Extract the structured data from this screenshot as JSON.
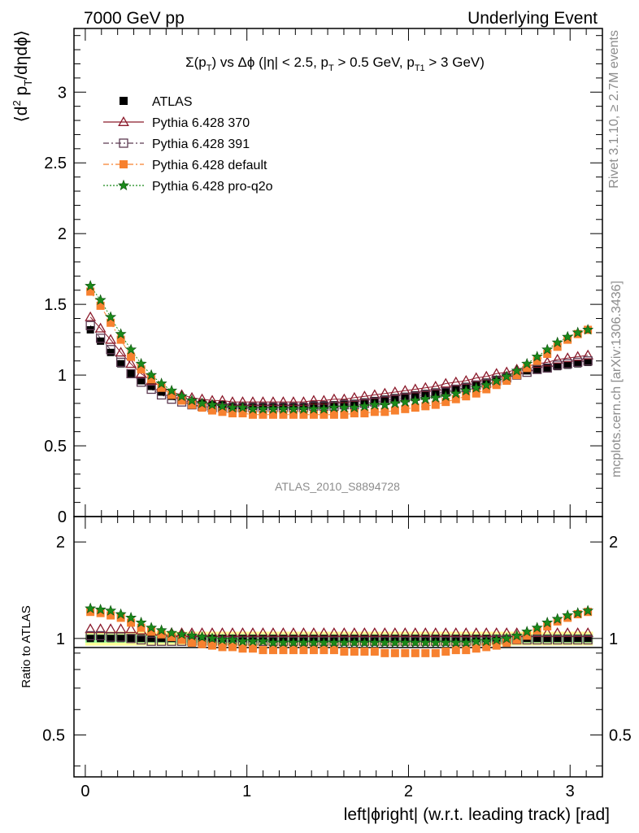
{
  "header": {
    "left": "7000 GeV pp",
    "right": "Underlying Event"
  },
  "side_labels": {
    "top": "Rivet 3.1.10, ≥ 2.7M events",
    "bottom": "mcplots.cern.ch [arXiv:1306.3436]"
  },
  "watermark": "ATLAS_2010_S8894728",
  "chart_data": [
    {
      "type": "scatter",
      "panel": "main",
      "title": "Σ(pT) vs Δφ (|η| < 2.5, pT > 0.5 GeV, pT1 > 3 GeV)",
      "ylabel": "⟨d² pT/dηdφ⟩",
      "xlabel": "",
      "xlim": [
        -0.07,
        3.2
      ],
      "ylim": [
        0,
        3.45
      ],
      "yticks": [
        "0",
        "0.5",
        "1",
        "1.5",
        "2",
        "2.5",
        "3"
      ],
      "xticks": [],
      "grid": false,
      "legend_position": "top-left",
      "x": [
        0.0314,
        0.0942,
        0.157,
        0.2199,
        0.2827,
        0.3456,
        0.4084,
        0.4712,
        0.5341,
        0.5969,
        0.6597,
        0.7226,
        0.7854,
        0.8482,
        0.9111,
        0.9739,
        1.0367,
        1.0996,
        1.1624,
        1.2252,
        1.2881,
        1.3509,
        1.4137,
        1.4765,
        1.5394,
        1.6022,
        1.665,
        1.7279,
        1.7907,
        1.8535,
        1.9164,
        1.9792,
        2.042,
        2.1049,
        2.1677,
        2.2305,
        2.2934,
        2.3562,
        2.419,
        2.4819,
        2.5447,
        2.6075,
        2.6704,
        2.7332,
        2.796,
        2.8589,
        2.9217,
        2.9845,
        3.0474,
        3.1102
      ],
      "series": [
        {
          "name": "ATLAS",
          "color": "#000000",
          "marker": "filled-square",
          "line": "none",
          "values": [
            1.32,
            1.24,
            1.16,
            1.08,
            1.01,
            0.96,
            0.92,
            0.88,
            0.85,
            0.83,
            0.81,
            0.8,
            0.79,
            0.79,
            0.78,
            0.78,
            0.78,
            0.78,
            0.78,
            0.78,
            0.78,
            0.78,
            0.79,
            0.79,
            0.79,
            0.8,
            0.8,
            0.81,
            0.82,
            0.83,
            0.84,
            0.85,
            0.86,
            0.87,
            0.88,
            0.89,
            0.9,
            0.92,
            0.93,
            0.95,
            0.97,
            0.99,
            1.01,
            1.03,
            1.04,
            1.05,
            1.06,
            1.07,
            1.08,
            1.09
          ]
        },
        {
          "name": "Pythia 6.428 370",
          "color": "#8b1a2b",
          "marker": "open-triangle",
          "line": "solid",
          "values": [
            1.41,
            1.33,
            1.25,
            1.16,
            1.08,
            1.01,
            0.96,
            0.92,
            0.88,
            0.86,
            0.84,
            0.83,
            0.82,
            0.82,
            0.81,
            0.81,
            0.81,
            0.81,
            0.81,
            0.81,
            0.81,
            0.81,
            0.82,
            0.82,
            0.83,
            0.83,
            0.84,
            0.85,
            0.86,
            0.87,
            0.88,
            0.89,
            0.9,
            0.91,
            0.92,
            0.94,
            0.95,
            0.96,
            0.98,
            0.99,
            1.01,
            1.02,
            1.04,
            1.06,
            1.08,
            1.09,
            1.11,
            1.12,
            1.13,
            1.14
          ]
        },
        {
          "name": "Pythia 6.428 391",
          "color": "#5c3a52",
          "marker": "open-square",
          "line": "dashdot",
          "values": [
            1.35,
            1.26,
            1.18,
            1.09,
            1.01,
            0.95,
            0.9,
            0.86,
            0.83,
            0.81,
            0.79,
            0.78,
            0.77,
            0.77,
            0.77,
            0.77,
            0.77,
            0.77,
            0.77,
            0.77,
            0.77,
            0.77,
            0.78,
            0.78,
            0.78,
            0.79,
            0.79,
            0.8,
            0.81,
            0.82,
            0.83,
            0.84,
            0.85,
            0.86,
            0.87,
            0.88,
            0.9,
            0.91,
            0.93,
            0.94,
            0.96,
            0.98,
            1.0,
            1.02,
            1.04,
            1.05,
            1.07,
            1.08,
            1.09,
            1.1
          ]
        },
        {
          "name": "Pythia 6.428 default",
          "color": "#f7812f",
          "marker": "filled-square",
          "line": "dashdot",
          "values": [
            1.59,
            1.49,
            1.37,
            1.25,
            1.13,
            1.04,
            0.97,
            0.91,
            0.86,
            0.82,
            0.79,
            0.77,
            0.75,
            0.74,
            0.73,
            0.73,
            0.72,
            0.72,
            0.72,
            0.72,
            0.72,
            0.72,
            0.72,
            0.72,
            0.72,
            0.72,
            0.73,
            0.73,
            0.74,
            0.74,
            0.75,
            0.76,
            0.77,
            0.78,
            0.79,
            0.81,
            0.83,
            0.85,
            0.87,
            0.9,
            0.93,
            0.96,
            1.0,
            1.05,
            1.1,
            1.15,
            1.2,
            1.25,
            1.29,
            1.32
          ]
        },
        {
          "name": "Pythia 6.428 pro-q2o",
          "color": "#1a8a1a",
          "marker": "star",
          "line": "dotted",
          "values": [
            1.63,
            1.53,
            1.41,
            1.29,
            1.18,
            1.08,
            1.0,
            0.94,
            0.89,
            0.85,
            0.82,
            0.8,
            0.79,
            0.78,
            0.77,
            0.77,
            0.76,
            0.76,
            0.76,
            0.76,
            0.76,
            0.76,
            0.76,
            0.76,
            0.77,
            0.77,
            0.77,
            0.78,
            0.79,
            0.79,
            0.8,
            0.81,
            0.82,
            0.83,
            0.84,
            0.85,
            0.87,
            0.89,
            0.91,
            0.93,
            0.96,
            0.99,
            1.03,
            1.08,
            1.13,
            1.18,
            1.23,
            1.27,
            1.3,
            1.32
          ]
        }
      ]
    },
    {
      "type": "scatter",
      "panel": "ratio",
      "title": "",
      "ylabel": "Ratio to ATLAS",
      "xlabel": "left|ϕright| (w.r.t. leading track) [rad]",
      "xlim": [
        -0.07,
        3.2
      ],
      "ylim": [
        0.37,
        2.4
      ],
      "log_y": true,
      "yticks": [
        "0.5",
        "1",
        "2"
      ],
      "xticks": [
        "0",
        "1",
        "2",
        "3"
      ],
      "grid": false,
      "reference_line": 1,
      "bands": [
        {
          "name": "total uncertainty",
          "color": "#ffff99",
          "lo": 0.95,
          "hi": 1.05
        },
        {
          "name": "stat uncertainty",
          "color": "#99ff99",
          "lo": 0.97,
          "hi": 1.03
        }
      ],
      "series": [
        {
          "name": "ATLAS",
          "color": "#000000",
          "marker": "filled-square",
          "values": [
            1.0,
            1.0,
            1.0,
            1.0,
            1.0,
            1.0,
            1.0,
            1.0,
            1.0,
            1.0,
            1.0,
            1.0,
            1.0,
            1.0,
            1.0,
            1.0,
            1.0,
            1.0,
            1.0,
            1.0,
            1.0,
            1.0,
            1.0,
            1.0,
            1.0,
            1.0,
            1.0,
            1.0,
            1.0,
            1.0,
            1.0,
            1.0,
            1.0,
            1.0,
            1.0,
            1.0,
            1.0,
            1.0,
            1.0,
            1.0,
            1.0,
            1.0,
            1.0,
            1.0,
            1.0,
            1.0,
            1.0,
            1.0,
            1.0,
            1.0
          ]
        },
        {
          "name": "Pythia 6.428 370",
          "color": "#8b1a2b",
          "marker": "open-triangle",
          "values": [
            1.07,
            1.07,
            1.07,
            1.07,
            1.07,
            1.06,
            1.05,
            1.05,
            1.04,
            1.04,
            1.04,
            1.04,
            1.04,
            1.04,
            1.04,
            1.04,
            1.04,
            1.04,
            1.04,
            1.04,
            1.04,
            1.04,
            1.04,
            1.04,
            1.04,
            1.04,
            1.04,
            1.04,
            1.04,
            1.04,
            1.04,
            1.04,
            1.04,
            1.04,
            1.04,
            1.04,
            1.04,
            1.04,
            1.04,
            1.04,
            1.04,
            1.04,
            1.04,
            1.04,
            1.04,
            1.04,
            1.04,
            1.04,
            1.04,
            1.04
          ]
        },
        {
          "name": "Pythia 6.428 391",
          "color": "#5c3a52",
          "marker": "open-square",
          "values": [
            1.02,
            1.02,
            1.01,
            1.01,
            1.0,
            0.99,
            0.98,
            0.98,
            0.98,
            0.98,
            0.98,
            0.98,
            0.98,
            0.98,
            0.98,
            0.98,
            0.98,
            0.98,
            0.98,
            0.98,
            0.98,
            0.98,
            0.98,
            0.98,
            0.98,
            0.98,
            0.98,
            0.98,
            0.98,
            0.98,
            0.98,
            0.98,
            0.98,
            0.98,
            0.98,
            0.98,
            0.98,
            0.98,
            0.98,
            0.98,
            0.99,
            0.99,
            0.99,
            0.99,
            0.99,
            0.99,
            0.99,
            0.99,
            0.99,
            0.99
          ]
        },
        {
          "name": "Pythia 6.428 default",
          "color": "#f7812f",
          "marker": "filled-square",
          "values": [
            1.21,
            1.2,
            1.18,
            1.16,
            1.12,
            1.08,
            1.05,
            1.03,
            1.01,
            0.99,
            0.97,
            0.96,
            0.95,
            0.94,
            0.94,
            0.93,
            0.93,
            0.92,
            0.92,
            0.92,
            0.92,
            0.92,
            0.92,
            0.92,
            0.92,
            0.91,
            0.91,
            0.91,
            0.91,
            0.9,
            0.9,
            0.9,
            0.9,
            0.9,
            0.9,
            0.91,
            0.92,
            0.92,
            0.93,
            0.94,
            0.95,
            0.97,
            0.99,
            1.02,
            1.06,
            1.09,
            1.13,
            1.16,
            1.19,
            1.21
          ]
        },
        {
          "name": "Pythia 6.428 pro-q2o",
          "color": "#1a8a1a",
          "marker": "star",
          "values": [
            1.24,
            1.23,
            1.22,
            1.19,
            1.16,
            1.12,
            1.08,
            1.06,
            1.04,
            1.03,
            1.02,
            1.01,
            1.0,
            0.99,
            0.99,
            0.98,
            0.98,
            0.98,
            0.97,
            0.97,
            0.97,
            0.97,
            0.97,
            0.97,
            0.97,
            0.97,
            0.97,
            0.97,
            0.97,
            0.97,
            0.97,
            0.97,
            0.97,
            0.97,
            0.97,
            0.97,
            0.97,
            0.97,
            0.98,
            0.98,
            0.99,
            1.0,
            1.02,
            1.05,
            1.08,
            1.12,
            1.15,
            1.18,
            1.2,
            1.22
          ]
        }
      ]
    }
  ]
}
